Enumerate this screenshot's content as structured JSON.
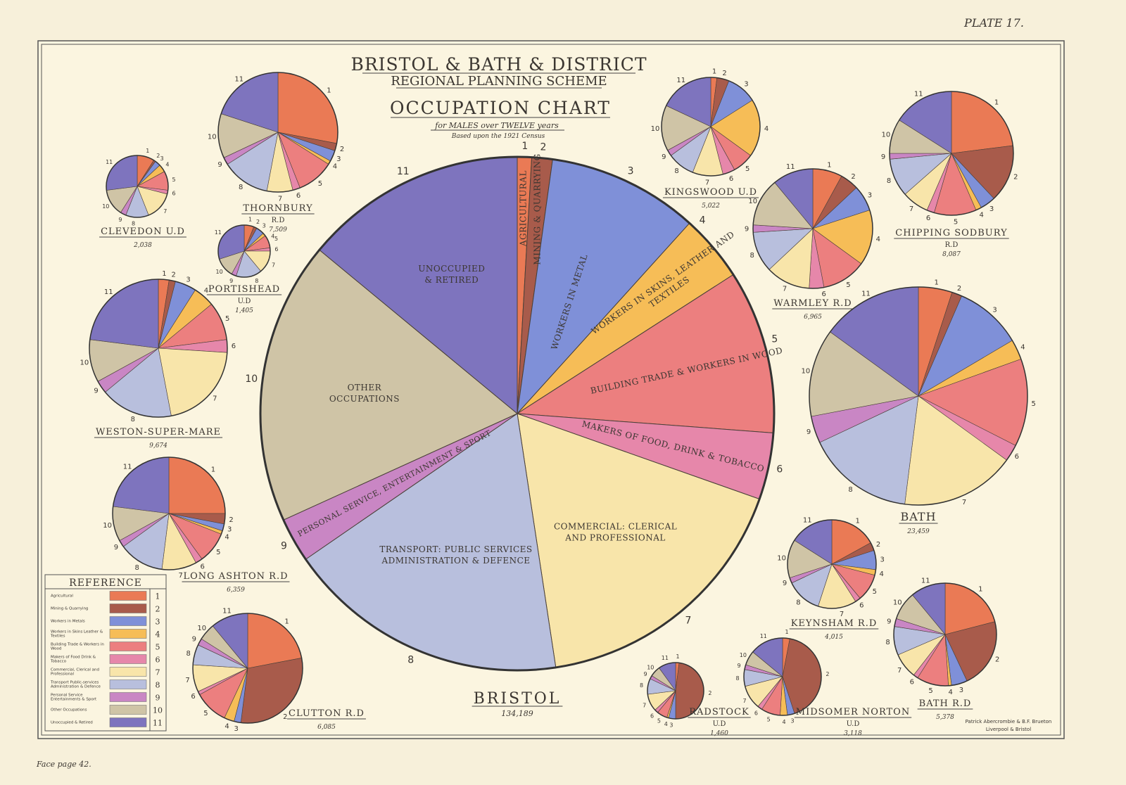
{
  "plate": "PLATE 17.",
  "face_page": "Face page 42.",
  "credit": [
    "Patrick Abercrombie & B.F. Brueton",
    "Liverpool & Bristol"
  ],
  "title": {
    "line1": "BRISTOL & BATH & DISTRICT",
    "line2": "REGIONAL PLANNING SCHEME",
    "main": "OCCUPATION CHART",
    "sub1": "for MALES over TWELVE years",
    "sub2": "Based upon the 1921 Census"
  },
  "colors": [
    "#ea7a55",
    "#a85b4b",
    "#7f90d8",
    "#f6bd57",
    "#ec7f7f",
    "#e687aa",
    "#f8e5aa",
    "#b8bfdd",
    "#c986c4",
    "#cfc4a6",
    "#7e74be"
  ],
  "legend": {
    "title": "REFERENCE",
    "items": [
      {
        "n": "1",
        "label": "Agricultural"
      },
      {
        "n": "2",
        "label": "Mining & Quarrying"
      },
      {
        "n": "3",
        "label": "Workers in Metals"
      },
      {
        "n": "4",
        "label": "Workers in Skins Leather & Textiles"
      },
      {
        "n": "5",
        "label": "Building Trade & Workers in Wood"
      },
      {
        "n": "6",
        "label": "Makers of Food Drink & Tobacco"
      },
      {
        "n": "7",
        "label": "Commercial, Clerical and Professional"
      },
      {
        "n": "8",
        "label": "Transport Public-services Administration & Defence"
      },
      {
        "n": "9",
        "label": "Personal Service Entertainments & Sport"
      },
      {
        "n": "10",
        "label": "Other Occupations"
      },
      {
        "n": "11",
        "label": "Unoccupied & Retired"
      }
    ]
  },
  "chart_data": {
    "type": "pie",
    "unit": "percent of males over twelve (estimated from slice angles)",
    "categories": [
      "1",
      "2",
      "3",
      "4",
      "5",
      "6",
      "7",
      "8",
      "9",
      "10",
      "11"
    ],
    "bristol_slice_labels": [
      [
        "AGRICULTURAL"
      ],
      [
        "MINING & QUARRYING"
      ],
      [
        "WORKERS IN METAL"
      ],
      [
        "WORKERS IN SKINS, LEATHER AND",
        "TEXTILES"
      ],
      [
        "BUILDING TRADE & WORKERS IN WOOD"
      ],
      [
        "MAKERS OF FOOD, DRINK & TOBACCO"
      ],
      [
        "COMMERCIAL: CLERICAL",
        "AND PROFESSIONAL"
      ],
      [
        "TRANSPORT: PUBLIC SERVICES",
        "ADMINISTRATION & DEFENCE"
      ],
      [
        "PERSONAL SERVICE, ENTERTAINMENT & SPORT"
      ],
      [
        "OTHER",
        "OCCUPATIONS"
      ],
      [
        "UNOCCUPIED",
        "& RETIRED"
      ]
    ],
    "pies": [
      {
        "id": "bristol",
        "name": "BRISTOL",
        "sub": "",
        "total": "134,189",
        "values": [
          0.9,
          1.3,
          9.5,
          4.2,
          10.3,
          4.2,
          17.2,
          17.8,
          2.8,
          17.8,
          14.0
        ]
      },
      {
        "id": "thornbury",
        "name": "THORNBURY",
        "sub": "R.D",
        "total": "7,509",
        "values": [
          28,
          2,
          3,
          1,
          10,
          2,
          7,
          13,
          2,
          12,
          20
        ]
      },
      {
        "id": "clevedon",
        "name": "CLEVEDON U.D",
        "sub": "",
        "total": "2,038",
        "values": [
          9,
          1,
          3,
          4,
          10,
          2,
          15,
          12,
          3,
          14,
          27
        ]
      },
      {
        "id": "portishead",
        "name": "PORTISHEAD",
        "sub": "U.D",
        "total": "1,405",
        "values": [
          6,
          2,
          5,
          2,
          8,
          2,
          14,
          16,
          3,
          12,
          30
        ]
      },
      {
        "id": "weston",
        "name": "WESTON-SUPER-MARE",
        "sub": "",
        "total": "9,674",
        "values": [
          2.5,
          1.5,
          5,
          5,
          9,
          3,
          21,
          17,
          3,
          10,
          23
        ]
      },
      {
        "id": "long-ashton",
        "name": "LONG ASHTON R.D",
        "sub": "",
        "total": "6,359",
        "values": [
          25,
          3,
          2,
          1,
          9,
          2,
          10,
          13,
          2,
          10,
          23
        ]
      },
      {
        "id": "clutton",
        "name": "CLUTTON R.D",
        "sub": "",
        "total": "6,085",
        "values": [
          22,
          30,
          2,
          3,
          10,
          1,
          8,
          6,
          2,
          5,
          11
        ]
      },
      {
        "id": "kingswood",
        "name": "KINGSWOOD U.D",
        "sub": "",
        "total": "5,022",
        "values": [
          2,
          4,
          10,
          19,
          7,
          4,
          10,
          9,
          2,
          15,
          18
        ]
      },
      {
        "id": "chipping-sodbury",
        "name": "CHIPPING SODBURY",
        "sub": "R.D",
        "total": "8,087",
        "values": [
          23,
          15,
          4,
          1.5,
          11,
          2,
          7,
          10,
          1.5,
          9,
          16
        ]
      },
      {
        "id": "warmley",
        "name": "WARMLEY R.D",
        "sub": "",
        "total": "6,965",
        "values": [
          8,
          5,
          7,
          15,
          12,
          4,
          12,
          11,
          2,
          13,
          11
        ]
      },
      {
        "id": "bath",
        "name": "BATH",
        "sub": "",
        "total": "23,459",
        "values": [
          5,
          1.5,
          10,
          3,
          13,
          2.5,
          17,
          16,
          4,
          13,
          15
        ]
      },
      {
        "id": "keynsham",
        "name": "KEYNSHAM R.D",
        "sub": "",
        "total": "4,015",
        "values": [
          17,
          3,
          7,
          2,
          10,
          2,
          14,
          13,
          2,
          14,
          16
        ]
      },
      {
        "id": "bath-rd",
        "name": "BATH R.D",
        "sub": "",
        "total": "5,378",
        "values": [
          21,
          22,
          5,
          1,
          10,
          1.5,
          8,
          9,
          2.5,
          9,
          11
        ]
      },
      {
        "id": "radstock",
        "name": "RADSTOCK",
        "sub": "U.D",
        "total": "1,460",
        "values": [
          2,
          48,
          4,
          1,
          6,
          2,
          10,
          9,
          2,
          6,
          10
        ]
      },
      {
        "id": "midsomer-norton",
        "name": "MIDSOMER NORTON",
        "sub": "U.D",
        "total": "3,118",
        "values": [
          3,
          42,
          3,
          3,
          8,
          2,
          10,
          7,
          2,
          6,
          14
        ]
      }
    ]
  }
}
